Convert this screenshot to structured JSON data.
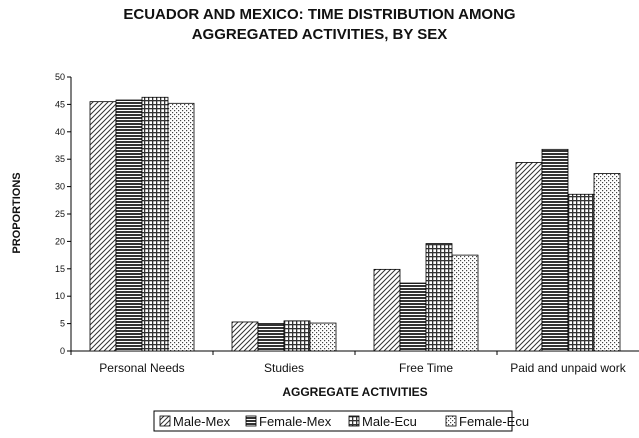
{
  "chart_data": {
    "type": "bar",
    "title_lines": [
      "ECUADOR AND MEXICO: TIME DISTRIBUTION AMONG",
      "AGGREGATED ACTIVITIES, BY SEX"
    ],
    "xlabel": "AGGREGATE ACTIVITIES",
    "ylabel": "PROPORTIONS",
    "ylim": [
      0,
      50
    ],
    "yticks": [
      0,
      5,
      10,
      15,
      20,
      25,
      30,
      35,
      40,
      45,
      50
    ],
    "categories": [
      "Personal Needs",
      "Studies",
      "Free Time",
      "Paid and unpaid work"
    ],
    "series": [
      {
        "name": "Male-Mex",
        "pattern": "diagonal",
        "values": [
          45.5,
          5.3,
          14.9,
          34.4
        ]
      },
      {
        "name": "Female-Mex",
        "pattern": "horizontal",
        "values": [
          45.8,
          5.0,
          12.4,
          36.8
        ]
      },
      {
        "name": "Male-Ecu",
        "pattern": "grid",
        "values": [
          46.3,
          5.5,
          19.6,
          28.6
        ]
      },
      {
        "name": "Female-Ecu",
        "pattern": "dots",
        "values": [
          45.2,
          5.1,
          17.5,
          32.4
        ]
      }
    ],
    "grid": false,
    "legend_position": "bottom"
  }
}
